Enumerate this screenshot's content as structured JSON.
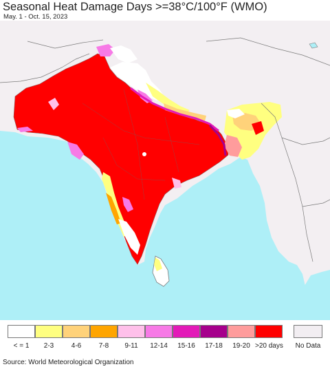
{
  "title": "Seasonal Heat Damage Days >=38°C/100°F (WMO)",
  "subtitle": "May. 1 - Oct. 15, 2023",
  "source": "Source: World Meteorological Organization",
  "colors": {
    "land": "#f3eff2",
    "ocean": "#aeeff7",
    "border": "#7a7a7a"
  },
  "legend": {
    "items": [
      {
        "label": "< = 1",
        "color": "#ffffff"
      },
      {
        "label": "2-3",
        "color": "#ffff80"
      },
      {
        "label": "4-6",
        "color": "#ffd27a"
      },
      {
        "label": "7-8",
        "color": "#ffa500"
      },
      {
        "label": "9-11",
        "color": "#ffc0ea"
      },
      {
        "label": "12-14",
        "color": "#f77ae6"
      },
      {
        "label": "15-16",
        "color": "#e31ab8"
      },
      {
        "label": "17-18",
        "color": "#a6008c"
      },
      {
        "label": "19-20",
        "color": "#ff9c9c"
      },
      {
        "label": ">20 days",
        "color": "#ff0000"
      }
    ],
    "nodata": {
      "label": "No Data",
      "color": "#f2eef2"
    }
  }
}
